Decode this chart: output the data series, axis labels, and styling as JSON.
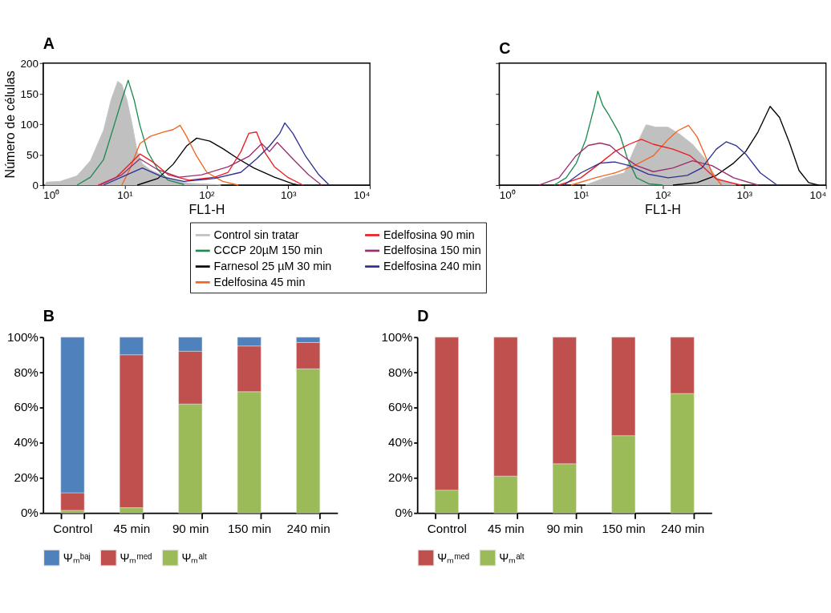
{
  "chart_data": [
    {
      "type": "line",
      "title": "A",
      "xlabel": "FL1-H",
      "ylabel": "Número de células",
      "log": "x",
      "xlim": [
        1,
        10000
      ],
      "xticks": [
        {
          "value": 1,
          "label": "10⁰"
        },
        {
          "value": 10,
          "label": "10¹"
        },
        {
          "value": 100,
          "label": "10²"
        },
        {
          "value": 1000,
          "label": "10³"
        },
        {
          "value": 10000,
          "label": "10⁴"
        }
      ],
      "ylim": [
        0,
        200
      ],
      "yticks": [
        0,
        50,
        100,
        150,
        200
      ],
      "legend": "bottom",
      "series": [
        {
          "name": "Control sin tratar",
          "type": "area",
          "color": "#c0c0c0",
          "x": [
            1.05,
            1.1,
            1.6,
            2.6,
            3.8,
            5.5,
            6.8,
            8.2,
            9.2,
            10.6,
            12.3,
            14.2,
            16.4,
            20.5,
            30,
            43,
            61,
            126,
            150
          ],
          "values": [
            0,
            5,
            6,
            15,
            40,
            90,
            140,
            170,
            165,
            140,
            100,
            55,
            35,
            25,
            15,
            8,
            3,
            1,
            0
          ]
        },
        {
          "name": "CCCP 20µM 150 min",
          "type": "line",
          "color": "#1e8c50",
          "x": [
            2.6,
            3.8,
            5.5,
            7.4,
            9.2,
            11,
            13,
            15.3,
            19,
            25.5,
            34,
            53
          ],
          "values": [
            0,
            13,
            42,
            98,
            140,
            172,
            140,
            98,
            55,
            25,
            8,
            1
          ]
        },
        {
          "name": "Farnesol 25 µM 30 min",
          "type": "line",
          "color": "#000000",
          "x": [
            14.2,
            25.5,
            39,
            57,
            76,
            110,
            158,
            245,
            380,
            680,
            1140,
            1330
          ],
          "values": [
            0,
            11,
            34,
            64,
            77,
            72,
            60,
            43,
            28,
            13,
            2,
            0
          ]
        },
        {
          "name": "Edelfosina 45 min",
          "type": "line",
          "color": "#f26522",
          "x": [
            9.2,
            11.4,
            15.3,
            20.5,
            29.5,
            39,
            47.5,
            57,
            76,
            101,
            158,
            245
          ],
          "values": [
            0,
            25,
            68,
            80,
            87,
            91,
            98,
            80,
            47,
            21,
            6,
            0
          ]
        },
        {
          "name": "Edelfosina 90 min",
          "type": "line",
          "color": "#ed1c24",
          "x": [
            4.7,
            7.9,
            10.6,
            15.3,
            22,
            34,
            61,
            126,
            184,
            264,
            330,
            410,
            510,
            680,
            980,
            1520
          ],
          "values": [
            0,
            13,
            30,
            51,
            38,
            17,
            8,
            13,
            21,
            55,
            85,
            87,
            55,
            30,
            13,
            0
          ]
        },
        {
          "name": "Edelfosina 150 min",
          "type": "line",
          "color": "#9b2d6f",
          "x": [
            5,
            9.2,
            15.3,
            25.5,
            46,
            88,
            184,
            330,
            475,
            590,
            735,
            1140,
            1770,
            2560
          ],
          "values": [
            0,
            17,
            43,
            25,
            13,
            17,
            30,
            47,
            68,
            55,
            70,
            43,
            17,
            0
          ]
        },
        {
          "name": "Edelfosina 240 min",
          "type": "line",
          "color": "#2e3192",
          "x": [
            5.5,
            10.6,
            16.4,
            29.5,
            53,
            126,
            264,
            410,
            590,
            790,
            910,
            1140,
            1640,
            2370,
            3180
          ],
          "values": [
            0,
            17,
            28,
            13,
            6,
            11,
            21,
            43,
            64,
            85,
            102,
            85,
            47,
            17,
            0
          ]
        }
      ]
    },
    {
      "type": "line",
      "title": "C",
      "xlabel": "FL1-H",
      "log": "x",
      "xlim": [
        1,
        10000
      ],
      "xticks": [
        {
          "value": 1,
          "label": "10⁰"
        },
        {
          "value": 10,
          "label": "10¹"
        },
        {
          "value": 100,
          "label": "10²"
        },
        {
          "value": 1000,
          "label": "10³"
        },
        {
          "value": 10000,
          "label": "10⁴"
        }
      ],
      "ylim": [
        0,
        200
      ],
      "yticks": [
        {
          "value": 0,
          "label": null
        },
        {
          "value": 50,
          "label": null
        },
        {
          "value": 100,
          "label": null
        },
        {
          "value": 150,
          "label": null
        },
        {
          "value": 200,
          "label": null
        }
      ],
      "tick_labels": "x",
      "series": [
        {
          "type": "area",
          "color": "#c0c0c0",
          "x": [
            11.4,
            19.8,
            34,
            45,
            63,
            83,
            117,
            164,
            232,
            327,
            455,
            790
          ],
          "values": [
            0,
            12,
            20,
            59,
            99,
            95,
            95,
            83,
            67,
            44,
            12,
            0
          ]
        },
        {
          "type": "line",
          "color": "#1e8c50",
          "x": [
            4.7,
            6.6,
            8.8,
            11.5,
            14.5,
            16.1,
            18.5,
            22,
            30,
            37,
            48,
            68,
            100
          ],
          "values": [
            0,
            12,
            36,
            75,
            127,
            154,
            131,
            115,
            83,
            44,
            12,
            2,
            0
          ]
        },
        {
          "type": "line",
          "color": "#000000",
          "x": [
            134,
            265,
            455,
            740,
            1040,
            1470,
            2070,
            2700,
            3540,
            4680,
            6140,
            8100
          ],
          "values": [
            0,
            4,
            16,
            36,
            55,
            87,
            129,
            111,
            71,
            24,
            4,
            0
          ]
        },
        {
          "type": "line",
          "color": "#f26522",
          "x": [
            7.6,
            15,
            26,
            45,
            77,
            117,
            153,
            208,
            265,
            327,
            402,
            527
          ],
          "values": [
            0,
            12,
            20,
            32,
            48,
            75,
            89,
            98,
            79,
            51,
            20,
            0
          ]
        },
        {
          "type": "line",
          "color": "#ed1c24",
          "x": [
            5.4,
            10,
            17.2,
            26,
            39,
            55,
            77,
            134,
            218,
            302,
            455,
            910
          ],
          "values": [
            0,
            12,
            36,
            55,
            67,
            75,
            67,
            59,
            48,
            32,
            10,
            0
          ]
        },
        {
          "type": "line",
          "color": "#9b2d6f",
          "x": [
            3.1,
            5.4,
            8.7,
            12.3,
            17.2,
            22.7,
            30,
            48,
            77,
            134,
            232,
            402,
            740,
            1470
          ],
          "values": [
            0,
            12,
            48,
            65,
            69,
            65,
            51,
            32,
            22,
            28,
            40,
            32,
            12,
            0
          ]
        },
        {
          "type": "line",
          "color": "#2e3192",
          "x": [
            6.2,
            10,
            17.2,
            26,
            39,
            67,
            117,
            201,
            302,
            455,
            600,
            790,
            1040,
            1570,
            2520
          ],
          "values": [
            0,
            20,
            36,
            38,
            32,
            18,
            12,
            16,
            28,
            59,
            71,
            65,
            51,
            20,
            0
          ]
        }
      ]
    },
    {
      "type": "bar",
      "title": "B",
      "stacked": true,
      "categories": [
        "Control",
        "45 min",
        "90 min",
        "150 min",
        "240 min"
      ],
      "ylim": [
        0,
        100
      ],
      "yticks": [
        {
          "value": 0,
          "label": "0%"
        },
        {
          "value": 20,
          "label": "20%"
        },
        {
          "value": 40,
          "label": "40%"
        },
        {
          "value": 60,
          "label": "60%"
        },
        {
          "value": 80,
          "label": "80%"
        },
        {
          "value": 100,
          "label": "100%"
        }
      ],
      "legend": "bottom",
      "series": [
        {
          "name": "Ψₘᵃˡᵗ",
          "color": "#9bbb59",
          "values": [
            1.5,
            3,
            62,
            69,
            82
          ]
        },
        {
          "name": "Ψₘᵐᵉᵈ",
          "color": "#c0504d",
          "values": [
            10,
            87,
            30,
            26,
            15
          ]
        },
        {
          "name": "Ψₘᵇᵃʲ",
          "color": "#4f81bd",
          "values": [
            88.5,
            10,
            8,
            5,
            3
          ]
        }
      ]
    },
    {
      "type": "bar",
      "title": "D",
      "stacked": true,
      "categories": [
        "Control",
        "45 min",
        "90 min",
        "150 min",
        "240 min"
      ],
      "ylim": [
        0,
        100
      ],
      "yticks": [
        {
          "value": 0,
          "label": "0%"
        },
        {
          "value": 20,
          "label": "20%"
        },
        {
          "value": 40,
          "label": "40%"
        },
        {
          "value": 60,
          "label": "60%"
        },
        {
          "value": 80,
          "label": "80%"
        },
        {
          "value": 100,
          "label": "100%"
        }
      ],
      "legend": "bottom",
      "series": [
        {
          "name": "Ψₘᵃˡᵗ",
          "color": "#9bbb59",
          "values": [
            13,
            21,
            28,
            44,
            68
          ]
        },
        {
          "name": "Ψₘᵐᵉᵈ",
          "color": "#c0504d",
          "values": [
            87,
            79,
            72,
            56,
            32
          ]
        }
      ]
    }
  ]
}
